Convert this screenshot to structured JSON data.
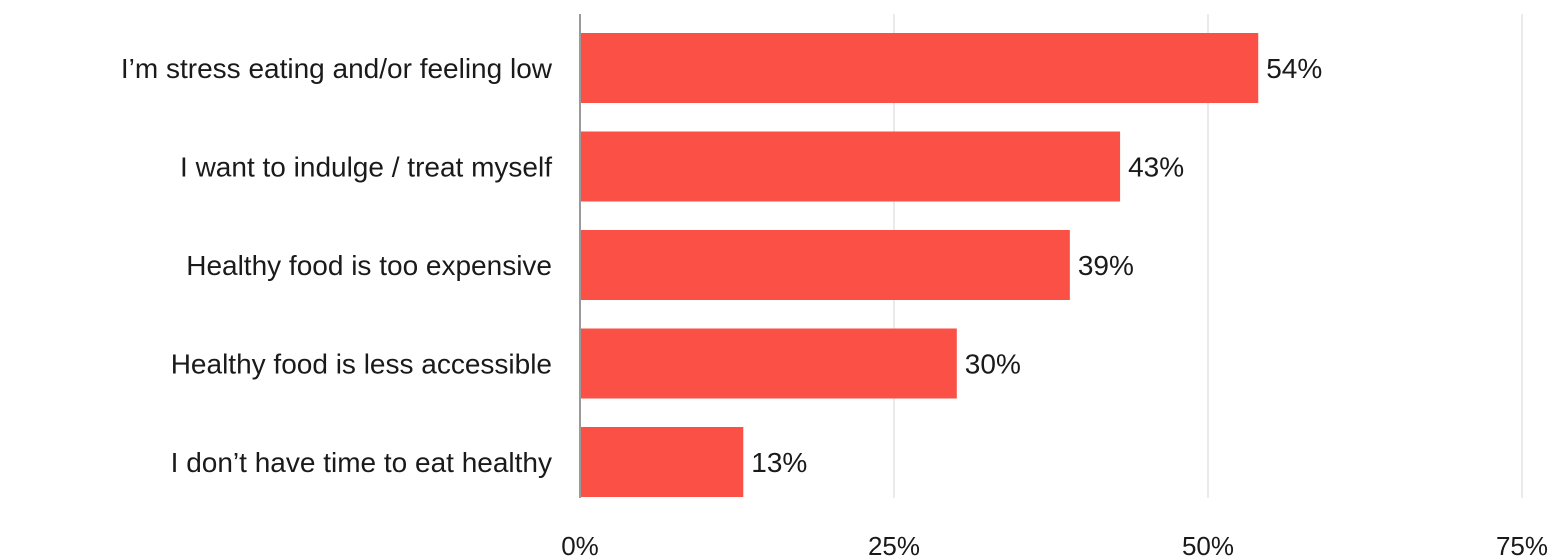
{
  "chart_data": {
    "type": "bar",
    "orientation": "horizontal",
    "categories": [
      "I’m stress eating and/or feeling low",
      "I want to indulge / treat myself",
      "Healthy food is too expensive",
      "Healthy food is less accessible",
      "I don’t have time to eat healthy"
    ],
    "values": [
      54,
      43,
      39,
      30,
      13
    ],
    "value_labels": [
      "54%",
      "43%",
      "39%",
      "30%",
      "13%"
    ],
    "xlim": [
      0,
      75
    ],
    "x_ticks": [
      0,
      25,
      50,
      75
    ],
    "x_tick_labels": [
      "0%",
      "25%",
      "50%",
      "75%"
    ],
    "grid": true,
    "legend": "none",
    "bar_color": "#FA5046",
    "grid_color": "#e3e3e3",
    "axis_color": "#9a9a9a",
    "text_color": "#1a1a1a"
  }
}
